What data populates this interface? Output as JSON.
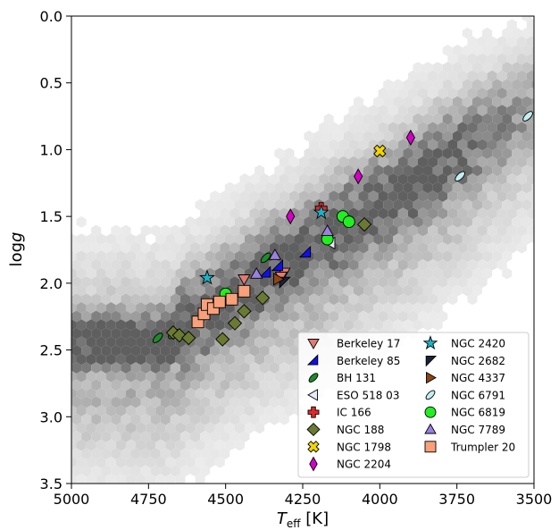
{
  "chart_data": {
    "type": "scatter",
    "xlabel_main": "T",
    "xlabel_sub": "eff",
    "xlabel_unit": " [K]",
    "ylabel_main": "log",
    "ylabel_italic": "g",
    "xlim": [
      5000,
      3500
    ],
    "ylim": [
      0.0,
      3.5
    ],
    "x_inverted": true,
    "y_inverted": true,
    "x_ticks": [
      5000,
      4750,
      4500,
      4250,
      4000,
      3750,
      3500
    ],
    "y_ticks": [
      0.0,
      0.5,
      1.0,
      1.5,
      2.0,
      2.5,
      3.0,
      3.5
    ],
    "x_tick_labels": [
      "5000",
      "4750",
      "4500",
      "4250",
      "4000",
      "3750",
      "3500"
    ],
    "y_tick_labels": [
      "0.0",
      "0.5",
      "1.0",
      "1.5",
      "2.0",
      "2.5",
      "3.0",
      "3.5"
    ],
    "grid": false,
    "background": "grey hexbin density of field stars along the red giant branch",
    "legend_position": "lower-right",
    "series": [
      {
        "name": "Berkeley 17",
        "marker": "triangle-down",
        "color": "#e07b73",
        "points": [
          [
            4440,
            1.97
          ],
          [
            4310,
            1.92
          ],
          [
            4320,
            1.95
          ]
        ]
      },
      {
        "name": "Berkeley 85",
        "marker": "half-triangle",
        "color": "#1010e8",
        "points": [
          [
            4370,
            1.92
          ],
          [
            4330,
            1.87
          ],
          [
            4240,
            1.77
          ]
        ]
      },
      {
        "name": "BH 131",
        "marker": "leaf",
        "color": "#1e8a2a",
        "points": [
          [
            4720,
            2.41
          ],
          [
            4670,
            2.38
          ],
          [
            4370,
            1.81
          ]
        ]
      },
      {
        "name": "ESO 518 03",
        "marker": "triangle-left",
        "color": "#e8e8fa",
        "points": [
          [
            4160,
            1.7
          ]
        ]
      },
      {
        "name": "IC 166",
        "marker": "plus",
        "color": "#e0282a",
        "points": [
          [
            4190,
            1.44
          ]
        ]
      },
      {
        "name": "NGC 188",
        "marker": "diamond",
        "color": "#6b7a32",
        "points": [
          [
            4670,
            2.37
          ],
          [
            4650,
            2.39
          ],
          [
            4620,
            2.41
          ],
          [
            4510,
            2.42
          ],
          [
            4470,
            2.3
          ],
          [
            4440,
            2.21
          ],
          [
            4380,
            2.11
          ],
          [
            4050,
            1.56
          ]
        ]
      },
      {
        "name": "NGC 1798",
        "marker": "x",
        "color": "#f2d500",
        "points": [
          [
            4000,
            1.01
          ]
        ]
      },
      {
        "name": "NGC 2204",
        "marker": "thin-diamond",
        "color": "#d400c8",
        "points": [
          [
            4290,
            1.5
          ],
          [
            4070,
            1.2
          ],
          [
            3900,
            0.91
          ]
        ]
      },
      {
        "name": "NGC 2420",
        "marker": "star",
        "color": "#1ab3c8",
        "points": [
          [
            4560,
            1.96
          ],
          [
            4190,
            1.47
          ]
        ]
      },
      {
        "name": "NGC 2682",
        "marker": "half-triangle-dark",
        "color": "#1a2238",
        "points": [
          [
            4310,
            1.99
          ]
        ]
      },
      {
        "name": "NGC 4337",
        "marker": "triangle-right",
        "color": "#8b4513",
        "points": [
          [
            4330,
            1.97
          ]
        ]
      },
      {
        "name": "NGC 6791",
        "marker": "leaf",
        "color": "#c4eef0",
        "points": [
          [
            3520,
            0.75
          ],
          [
            3740,
            1.2
          ]
        ]
      },
      {
        "name": "NGC 6819",
        "marker": "circle",
        "color": "#22ee22",
        "points": [
          [
            4500,
            2.08
          ],
          [
            4170,
            1.67
          ],
          [
            4120,
            1.5
          ],
          [
            4100,
            1.54
          ]
        ]
      },
      {
        "name": "NGC 7789",
        "marker": "triangle-up",
        "color": "#9a80e0",
        "points": [
          [
            4400,
            1.93
          ],
          [
            4340,
            1.79
          ],
          [
            4170,
            1.61
          ]
        ]
      },
      {
        "name": "Trumpler 20",
        "marker": "square",
        "color": "#f7a07a",
        "points": [
          [
            4590,
            2.29
          ],
          [
            4570,
            2.23
          ],
          [
            4560,
            2.16
          ],
          [
            4540,
            2.19
          ],
          [
            4520,
            2.14
          ],
          [
            4480,
            2.12
          ],
          [
            4440,
            2.06
          ]
        ]
      }
    ]
  }
}
